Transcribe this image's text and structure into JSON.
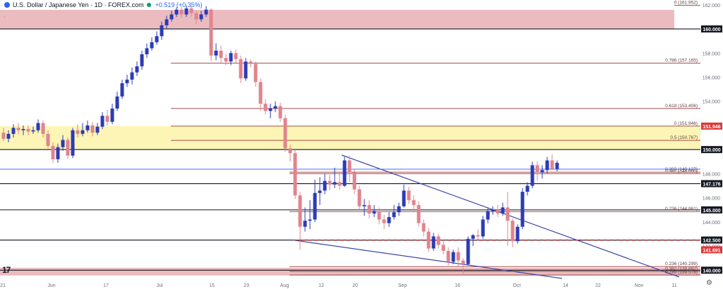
{
  "header": {
    "title": "U.S. Dollar / Japanese Yen · 1D · FOREX.com",
    "change": "+0.519 (+0.35%)"
  },
  "icons": {
    "logo": "tradingview-logo-icon",
    "collapse": "chevron-up-icon",
    "settings": "gear-icon"
  },
  "colors": {
    "up": "#2c3bb5",
    "down": "#e0848e",
    "zone_red": "#e7b0b4",
    "zone_yellow": "#fdf3a9",
    "fib": "#a54b4b",
    "trend": "#3b48a8",
    "level_red": "#e03636",
    "level_blue": "#4b6ef5"
  },
  "chart_data": {
    "type": "candlestick",
    "symbol": "USDJPY",
    "timeframe": "1D",
    "ylim": [
      139.2,
      162.4
    ],
    "y_ticks": [
      "162.000",
      "160.000",
      "158.000",
      "156.000",
      "154.000",
      "152.000",
      "150.000",
      "148.000",
      "146.000",
      "144.000",
      "142.000",
      "140.000"
    ],
    "x_ticks": [
      "21",
      "Jun",
      "17",
      "Jul",
      "15",
      "23",
      "Aug",
      "12",
      "20",
      "Sep",
      "16",
      "Oct",
      "14",
      "22",
      "Nov",
      "11"
    ],
    "candles": [
      [
        151.4,
        150.9,
        151.8,
        150.7
      ],
      [
        150.9,
        151.3,
        151.6,
        150.6
      ],
      [
        151.3,
        151.8,
        152.1,
        151.0
      ],
      [
        151.8,
        151.6,
        152.2,
        151.3
      ],
      [
        151.6,
        151.7,
        152.0,
        151.2
      ],
      [
        151.7,
        151.5,
        152.0,
        151.2
      ],
      [
        151.5,
        151.6,
        151.9,
        151.3
      ],
      [
        151.6,
        152.2,
        152.5,
        151.4
      ],
      [
        152.2,
        151.3,
        152.4,
        151.0
      ],
      [
        151.3,
        150.3,
        151.6,
        150.1
      ],
      [
        150.3,
        149.2,
        150.6,
        148.9
      ],
      [
        149.2,
        150.2,
        150.5,
        148.9
      ],
      [
        150.2,
        150.8,
        151.2,
        149.9
      ],
      [
        150.8,
        149.5,
        151.0,
        149.2
      ],
      [
        149.5,
        151.6,
        151.8,
        149.3
      ],
      [
        151.6,
        151.3,
        152.1,
        151.0
      ],
      [
        151.3,
        151.6,
        152.2,
        151.1
      ],
      [
        151.6,
        152.0,
        152.4,
        151.4
      ],
      [
        152.0,
        151.4,
        152.3,
        151.1
      ],
      [
        151.4,
        151.9,
        152.2,
        151.2
      ],
      [
        151.9,
        152.8,
        153.1,
        151.7
      ],
      [
        152.8,
        152.3,
        153.3,
        152.0
      ],
      [
        152.3,
        153.4,
        153.8,
        152.1
      ],
      [
        153.4,
        154.4,
        154.8,
        153.2
      ],
      [
        154.4,
        155.5,
        155.8,
        154.2
      ],
      [
        155.5,
        155.8,
        156.2,
        155.2
      ],
      [
        155.8,
        156.4,
        156.8,
        155.4
      ],
      [
        156.4,
        156.9,
        157.3,
        156.1
      ],
      [
        156.9,
        157.9,
        158.2,
        156.6
      ],
      [
        157.9,
        158.4,
        158.8,
        157.6
      ],
      [
        158.4,
        158.9,
        159.3,
        158.2
      ],
      [
        158.9,
        159.4,
        159.8,
        158.7
      ],
      [
        159.4,
        160.3,
        160.6,
        159.1
      ],
      [
        160.3,
        160.8,
        161.1,
        160.0
      ],
      [
        160.8,
        161.2,
        161.5,
        160.6
      ],
      [
        161.2,
        161.6,
        161.8,
        161.0
      ],
      [
        161.6,
        161.2,
        161.9,
        160.9
      ],
      [
        161.2,
        161.7,
        161.95,
        161.0
      ],
      [
        161.7,
        161.3,
        161.9,
        161.0
      ],
      [
        161.3,
        160.8,
        161.5,
        160.4
      ],
      [
        160.8,
        161.2,
        161.5,
        160.6
      ],
      [
        161.2,
        161.6,
        161.9,
        161.0
      ],
      [
        161.6,
        157.8,
        161.7,
        157.3
      ],
      [
        157.8,
        158.2,
        158.8,
        157.4
      ],
      [
        158.2,
        157.6,
        158.6,
        157.2
      ],
      [
        157.6,
        157.3,
        157.9,
        157.0
      ],
      [
        157.3,
        158.0,
        158.2,
        157.0
      ],
      [
        158.0,
        157.5,
        158.3,
        157.2
      ],
      [
        157.5,
        155.9,
        157.8,
        155.5
      ],
      [
        155.9,
        157.3,
        157.6,
        155.7
      ],
      [
        157.3,
        157.1,
        157.5,
        156.8
      ],
      [
        157.1,
        155.6,
        157.3,
        155.2
      ],
      [
        155.6,
        153.8,
        155.9,
        153.2
      ],
      [
        153.8,
        153.2,
        154.2,
        152.9
      ],
      [
        153.2,
        153.4,
        153.8,
        152.6
      ],
      [
        153.4,
        153.6,
        154.0,
        153.1
      ],
      [
        153.6,
        152.6,
        153.9,
        152.3
      ],
      [
        152.6,
        150.1,
        152.9,
        149.8
      ],
      [
        150.1,
        149.7,
        150.4,
        149.0
      ],
      [
        149.7,
        146.2,
        150.0,
        145.9
      ],
      [
        146.2,
        143.6,
        146.5,
        141.7
      ],
      [
        143.6,
        144.1,
        145.2,
        143.2
      ],
      [
        144.1,
        144.2,
        145.8,
        143.4
      ],
      [
        144.2,
        146.4,
        147.5,
        144.0
      ],
      [
        146.4,
        146.6,
        147.7,
        145.4
      ],
      [
        146.6,
        147.4,
        148.0,
        146.3
      ],
      [
        147.4,
        147.1,
        147.9,
        146.6
      ],
      [
        147.1,
        147.3,
        148.5,
        146.8
      ],
      [
        147.3,
        147.0,
        148.0,
        146.7
      ],
      [
        147.0,
        149.1,
        149.4,
        146.9
      ],
      [
        149.1,
        148.1,
        149.5,
        147.3
      ],
      [
        148.1,
        146.7,
        148.4,
        146.3
      ],
      [
        146.7,
        145.3,
        147.0,
        145.0
      ],
      [
        145.3,
        145.4,
        145.9,
        144.5
      ],
      [
        145.4,
        144.7,
        145.8,
        144.3
      ],
      [
        144.7,
        144.9,
        145.4,
        144.4
      ],
      [
        144.9,
        144.2,
        145.2,
        143.8
      ],
      [
        144.2,
        143.9,
        144.6,
        143.4
      ],
      [
        143.9,
        144.4,
        144.8,
        143.6
      ],
      [
        144.4,
        144.8,
        145.4,
        144.2
      ],
      [
        144.8,
        145.3,
        145.6,
        144.5
      ],
      [
        145.3,
        146.6,
        147.1,
        145.2
      ],
      [
        146.6,
        145.8,
        146.9,
        145.5
      ],
      [
        145.8,
        145.4,
        146.2,
        144.8
      ],
      [
        145.4,
        143.9,
        145.7,
        143.6
      ],
      [
        143.9,
        143.2,
        144.2,
        142.8
      ],
      [
        143.2,
        141.8,
        143.5,
        141.5
      ],
      [
        141.8,
        142.8,
        143.1,
        141.6
      ],
      [
        142.8,
        142.1,
        143.0,
        141.8
      ],
      [
        142.1,
        141.6,
        142.4,
        141.3
      ],
      [
        141.6,
        140.7,
        141.9,
        140.4
      ],
      [
        140.7,
        141.5,
        141.7,
        140.5
      ],
      [
        141.5,
        140.8,
        141.9,
        140.3
      ],
      [
        140.8,
        140.5,
        141.0,
        139.6
      ],
      [
        140.5,
        142.6,
        142.8,
        140.4
      ],
      [
        142.6,
        142.9,
        143.0,
        142.0
      ],
      [
        142.9,
        142.8,
        143.4,
        142.5
      ],
      [
        142.8,
        144.2,
        144.5,
        142.6
      ],
      [
        144.2,
        144.9,
        145.2,
        143.9
      ],
      [
        144.9,
        145.0,
        145.3,
        144.6
      ],
      [
        145.0,
        144.7,
        145.4,
        144.4
      ],
      [
        144.7,
        145.2,
        145.6,
        144.5
      ],
      [
        145.2,
        144.1,
        146.5,
        142.0
      ],
      [
        144.1,
        142.4,
        144.3,
        141.9
      ],
      [
        142.4,
        143.6,
        143.8,
        142.2
      ],
      [
        143.6,
        146.5,
        146.8,
        143.4
      ],
      [
        146.5,
        147.0,
        147.3,
        146.2
      ],
      [
        147.0,
        148.7,
        149.0,
        146.8
      ],
      [
        148.7,
        148.1,
        149.0,
        147.4
      ],
      [
        148.1,
        148.3,
        148.7,
        147.6
      ],
      [
        148.3,
        149.1,
        149.4,
        148.0
      ],
      [
        149.1,
        148.4,
        149.6,
        148.3
      ],
      [
        148.4,
        148.9,
        149.1,
        148.2
      ]
    ],
    "x_start_label": "21",
    "zones": [
      {
        "from": 160.0,
        "to": 162.4,
        "color": "#e7b0b4"
      },
      {
        "from": 150.0,
        "to": 151.946,
        "color": "#fdf3a9"
      },
      {
        "from": 139.56,
        "to": 140.2,
        "color": "#e7b0b4"
      }
    ],
    "levels": [
      {
        "value": 160.0,
        "label": "160.000"
      },
      {
        "value": 150.0,
        "label": "150.000"
      },
      {
        "value": 147.176,
        "label": "147.176"
      },
      {
        "value": 145.0,
        "label": "145.000"
      },
      {
        "value": 142.5,
        "label": "142.500"
      },
      {
        "value": 140.0,
        "label": "140.000"
      }
    ],
    "tags": [
      {
        "value": 151.946,
        "label": "151.946"
      },
      {
        "value": 141.691,
        "label": "141.691"
      }
    ],
    "fib_lines": [
      {
        "value": 161.952,
        "label": "0 (161.952)"
      },
      {
        "value": 157.165,
        "label": "0.786 (157.165)"
      },
      {
        "value": 153.406,
        "label": "0.618 (153.406)"
      },
      {
        "value": 151.946,
        "label": "0 (151.946)"
      },
      {
        "value": 150.767,
        "label": "0.5 (150.767)"
      },
      {
        "value": 148.127,
        "label": "0.382 (148.127)"
      },
      {
        "value": 148.0,
        "label": "0.382 (148.000)"
      },
      {
        "value": 144.861,
        "label": "0.236 (144.861)"
      },
      {
        "value": 140.299,
        "label": "0.236 (140.299)"
      },
      {
        "value": 139.9,
        "label": "0.382 (139.882)"
      },
      {
        "value": 139.6,
        "label": "0.786 (139.578)"
      }
    ]
  }
}
